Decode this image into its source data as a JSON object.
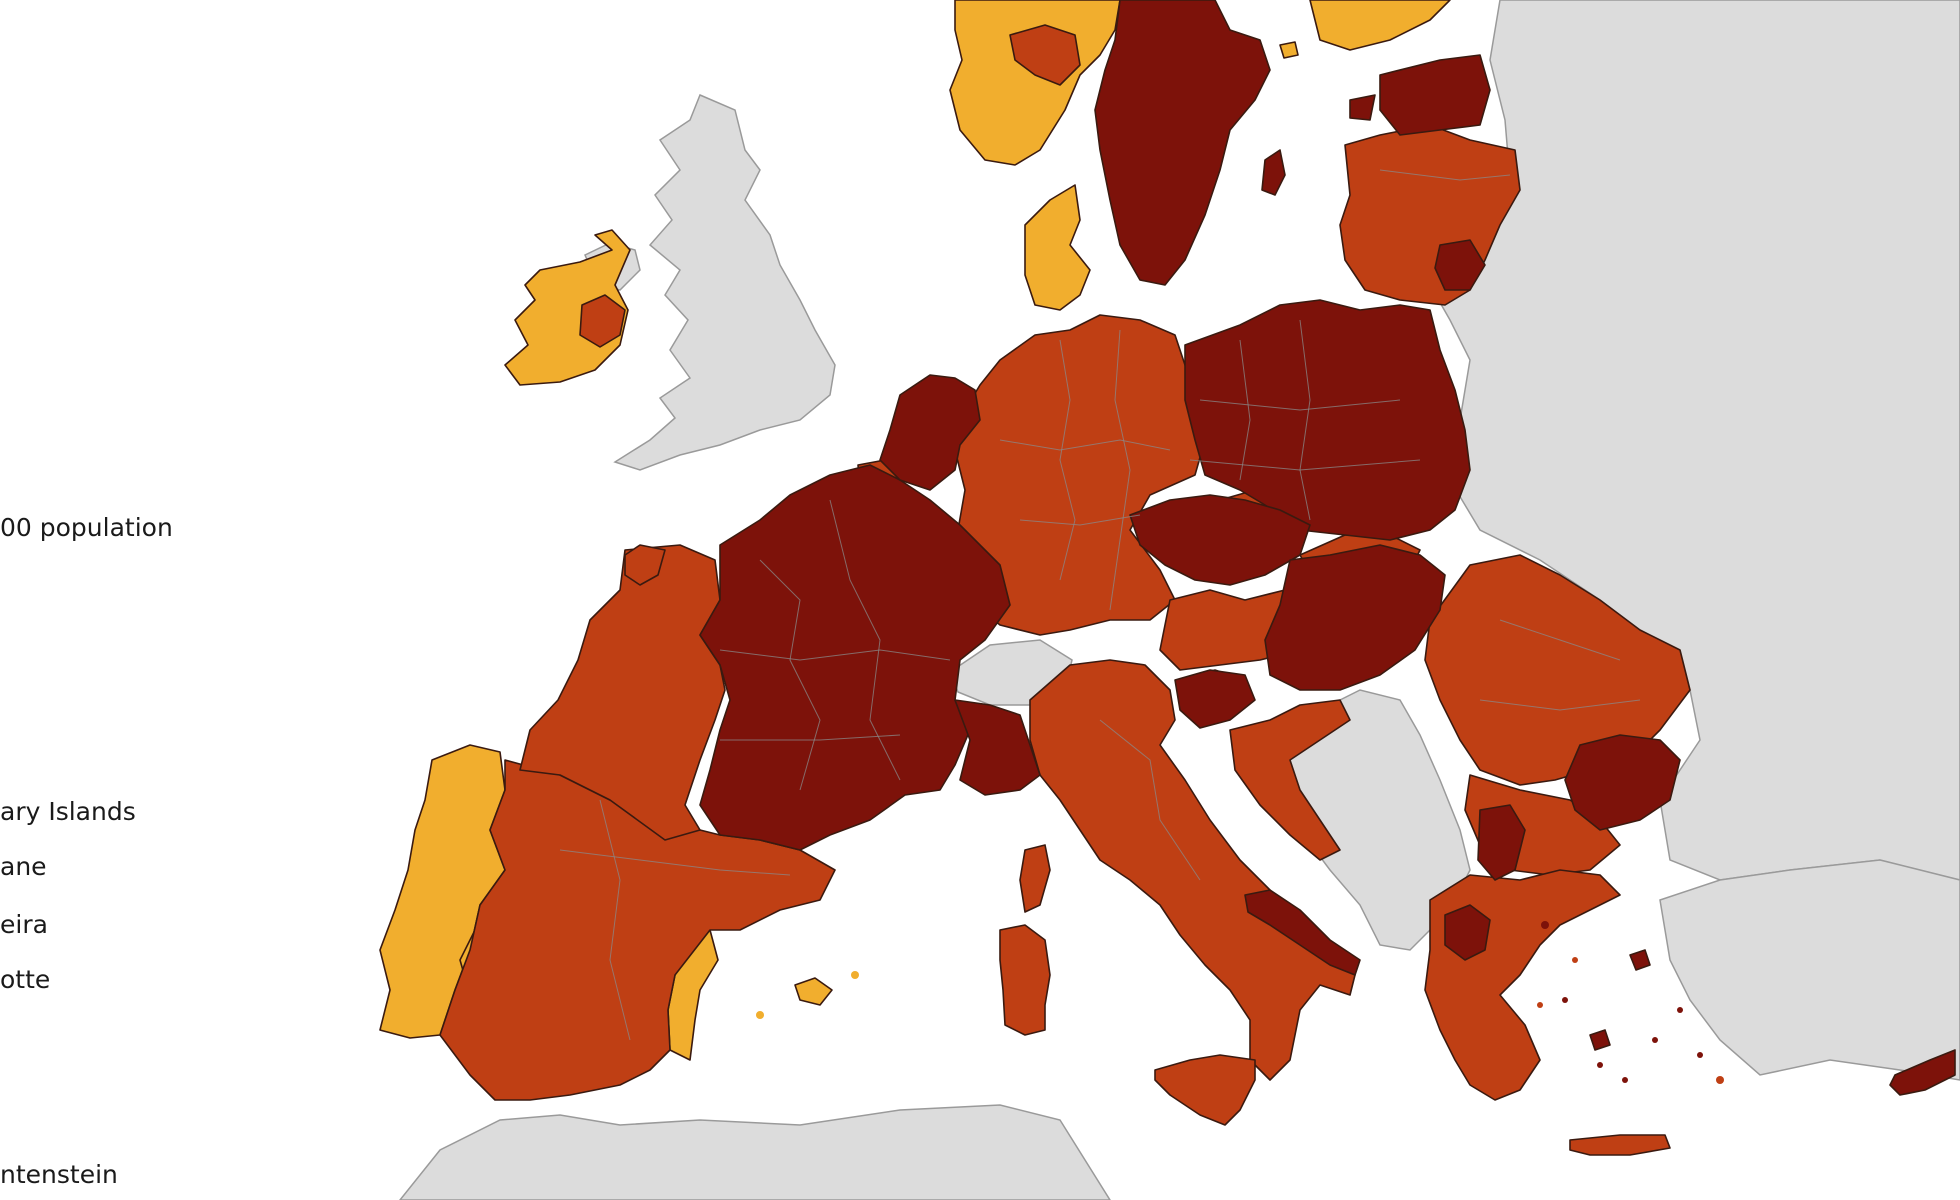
{
  "legend": {
    "heading_fragment": "00 population",
    "items": [
      {
        "text": "ary Islands"
      },
      {
        "text": "ane"
      },
      {
        "text": "eira"
      },
      {
        "text": "otte"
      }
    ],
    "bottom_text": "ntenstein"
  },
  "colors": {
    "water": "#ffffff",
    "no_data_grey": "#dcdcdc",
    "yellow_orange": "#f1ae2e",
    "orange_red": "#bf3f14",
    "dark_red": "#7d120a"
  },
  "map": {
    "type": "choropleth",
    "area": "Europe",
    "category_colors_in_use": [
      "yellow_orange",
      "orange_red",
      "dark_red",
      "no_data_grey"
    ]
  }
}
